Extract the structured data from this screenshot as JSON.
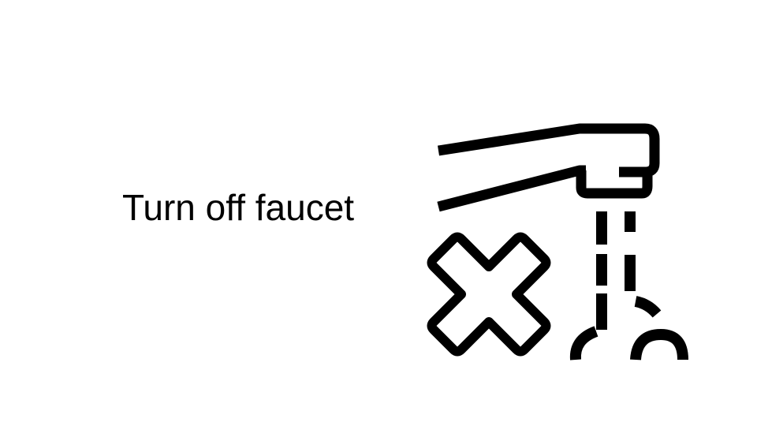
{
  "slide": {
    "caption": "Turn off faucet",
    "icon": "faucet-off-icon",
    "colors": {
      "background": "#ffffff",
      "ink": "#000000"
    }
  }
}
